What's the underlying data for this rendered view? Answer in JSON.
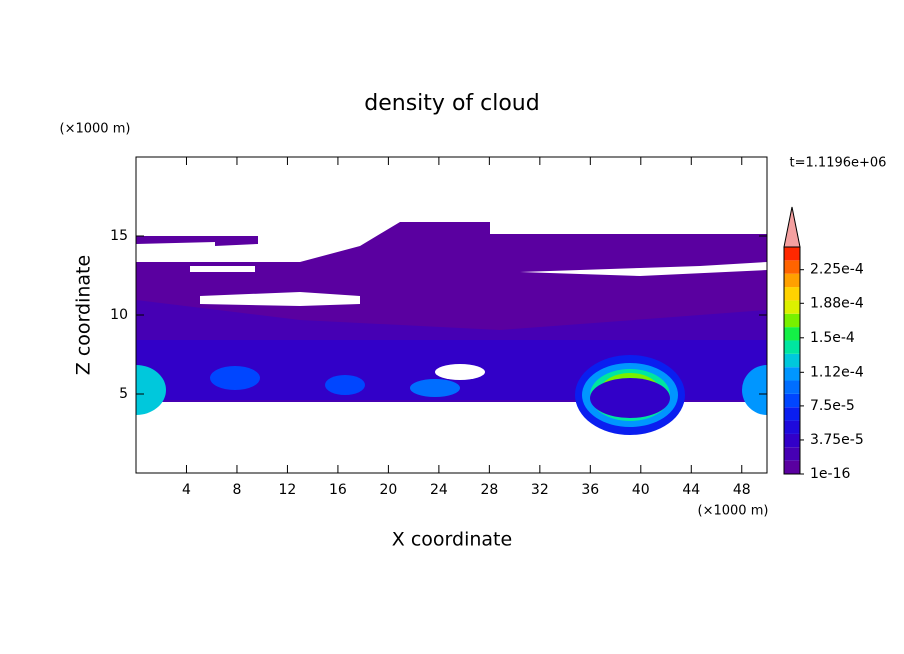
{
  "chart_data": {
    "type": "contour",
    "title": "density of cloud",
    "x_label": "X coordinate",
    "y_label": "Z coordinate",
    "x_unit": "(×1000 m)",
    "y_unit": "(×1000 m)",
    "annotation": "t=1.1196e+06",
    "xlim": [
      0,
      50
    ],
    "ylim": [
      0,
      20
    ],
    "xticks": [
      4,
      8,
      12,
      16,
      20,
      24,
      28,
      32,
      36,
      40,
      44,
      48
    ],
    "yticks": [
      5,
      10,
      15
    ],
    "colorbar": {
      "clim": [
        0,
        0.00025
      ],
      "colors": [
        "#5a00a0",
        "#4600b4",
        "#3200c8",
        "#1e0adc",
        "#0a1ef0",
        "#0046ff",
        "#006eff",
        "#0096ff",
        "#00c8dc",
        "#00e6a0",
        "#14f046",
        "#78f000",
        "#dcf000",
        "#ffd200",
        "#ffa000",
        "#ff6400",
        "#ff2800"
      ],
      "ticks": [
        {
          "value": 1e-16,
          "label": "1e-16"
        },
        {
          "value": 3.75e-05,
          "label": "3.75e-5"
        },
        {
          "value": 7.5e-05,
          "label": "7.5e-5"
        },
        {
          "value": 0.000112,
          "label": "1.12e-4"
        },
        {
          "value": 0.00015,
          "label": "1.5e-4"
        },
        {
          "value": 0.000188,
          "label": "1.88e-4"
        },
        {
          "value": 0.000225,
          "label": "2.25e-4"
        }
      ]
    }
  }
}
